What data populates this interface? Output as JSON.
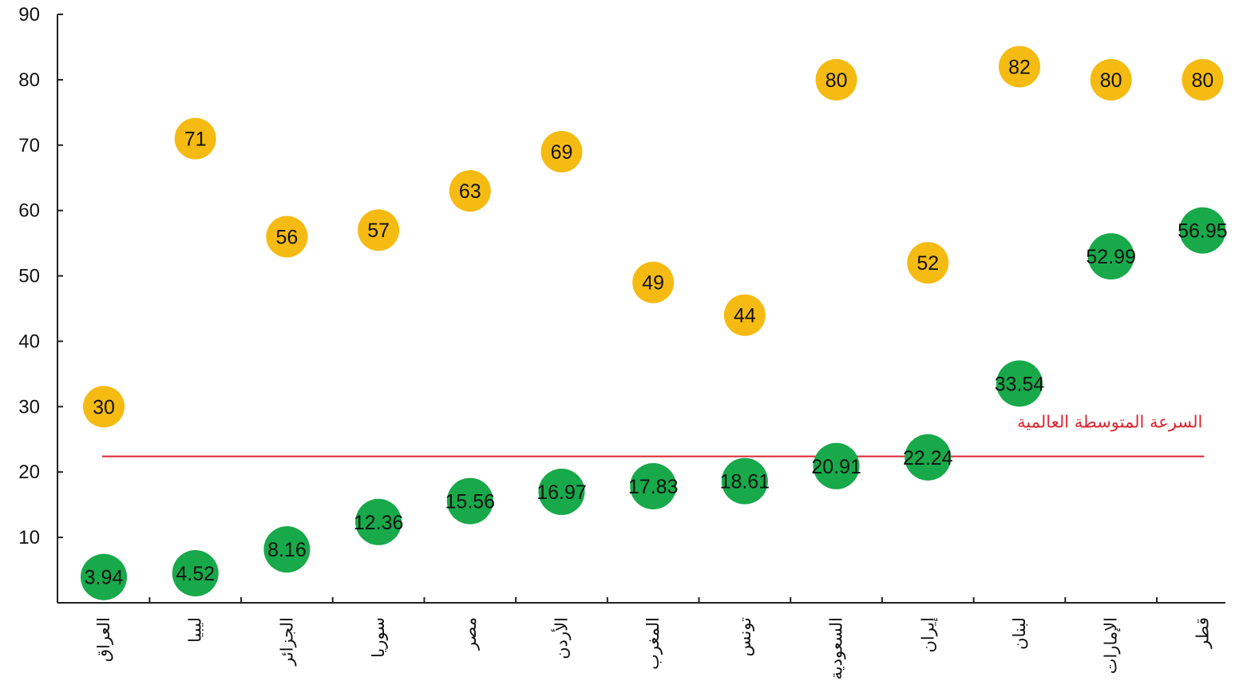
{
  "chart_data": {
    "type": "scatter",
    "categories": [
      "العراق",
      "ليبيا",
      "الجزائر",
      "سوريا",
      "مصر",
      "الأردن",
      "المغرب",
      "تونس",
      "السعودية",
      "إيران",
      "لبنان",
      "الإمارات",
      "قطر"
    ],
    "series": [
      {
        "color": "#f5bb12",
        "values": [
          30,
          71,
          56,
          57,
          63,
          69,
          49,
          44,
          80,
          52,
          82,
          80,
          80
        ]
      },
      {
        "color": "#18a94a",
        "values": [
          3.94,
          4.52,
          8.16,
          12.36,
          15.56,
          16.97,
          17.83,
          18.61,
          20.91,
          22.24,
          33.54,
          52.99,
          56.95
        ]
      }
    ],
    "reference_line": {
      "label": "السرعة المتوسطة العالمية",
      "value": 22.4,
      "color": "#d9252f"
    },
    "title": "",
    "xlabel": "",
    "ylabel": "",
    "ylim": [
      0,
      90
    ],
    "yticks": [
      10,
      20,
      30,
      40,
      50,
      60,
      70,
      80,
      90
    ],
    "grid": false,
    "legend": "none"
  }
}
